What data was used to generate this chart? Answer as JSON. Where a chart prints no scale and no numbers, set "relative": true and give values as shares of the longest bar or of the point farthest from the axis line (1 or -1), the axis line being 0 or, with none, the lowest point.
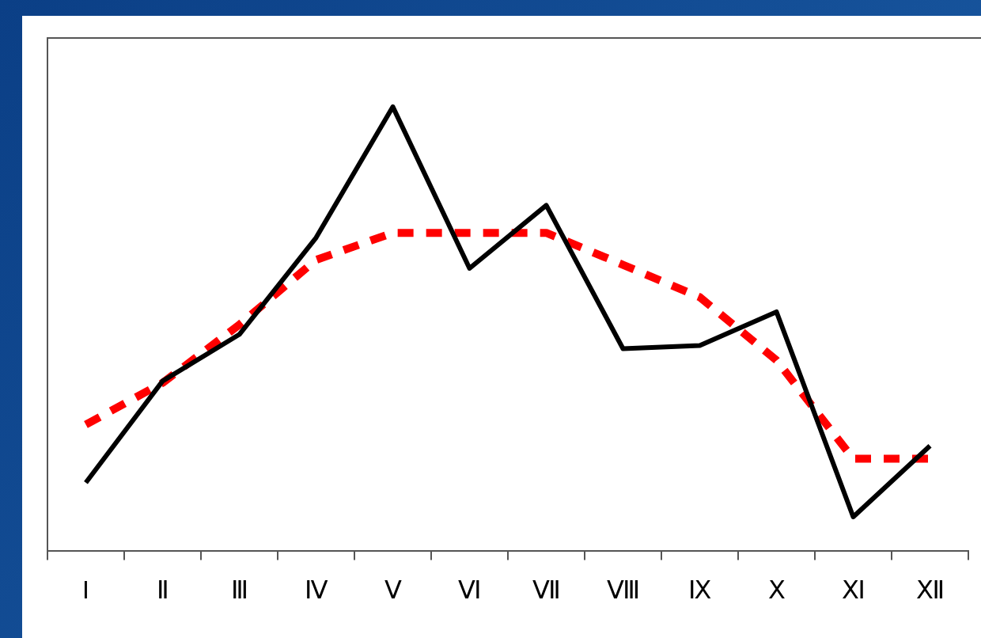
{
  "chart_data": {
    "type": "line",
    "relative": true,
    "categories": [
      "I",
      "Ⅱ",
      "Ⅲ",
      "Ⅳ",
      "Ⅴ",
      "Ⅵ",
      "Ⅶ",
      "Ⅷ",
      "Ⅸ",
      "Ⅹ",
      "Ⅺ",
      "Ⅻ"
    ],
    "marker": "none",
    "grid": false,
    "legend": false,
    "series": [
      {
        "color": "#000000",
        "line_style": "solid",
        "values": [
          0.153,
          0.382,
          0.487,
          0.705,
          1,
          0.636,
          0.778,
          0.455,
          0.462,
          0.538,
          0.076,
          0.236
        ]
      },
      {
        "color": "#ff0000",
        "line_style": "dashed",
        "values": [
          0.284,
          0.378,
          0.509,
          0.655,
          0.716,
          0.716,
          0.716,
          0.644,
          0.571,
          0.429,
          0.207,
          0.207
        ]
      }
    ]
  }
}
